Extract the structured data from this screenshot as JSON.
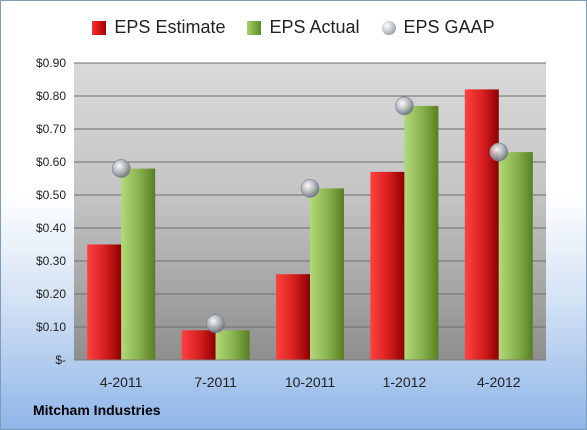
{
  "chart_data": {
    "type": "bar",
    "categories": [
      "4-2011",
      "7-2011",
      "10-2011",
      "1-2012",
      "4-2012"
    ],
    "series": [
      {
        "name": "EPS Estimate",
        "kind": "bar",
        "color": "#c41818",
        "values": [
          0.35,
          0.09,
          0.26,
          0.57,
          0.82
        ]
      },
      {
        "name": "EPS Actual",
        "kind": "bar",
        "color": "#8ab44a",
        "values": [
          0.58,
          0.09,
          0.52,
          0.77,
          0.63
        ]
      },
      {
        "name": "EPS GAAP",
        "kind": "marker",
        "color": "#a8acb4",
        "values": [
          0.58,
          0.11,
          0.52,
          0.77,
          0.63
        ]
      }
    ],
    "ylim": [
      0,
      0.9
    ],
    "yticks": [
      0,
      0.1,
      0.2,
      0.3,
      0.4,
      0.5,
      0.6,
      0.7,
      0.8,
      0.9
    ],
    "ytick_labels": [
      "$-",
      "$0.10",
      "$0.20",
      "$0.30",
      "$0.40",
      "$0.50",
      "$0.60",
      "$0.70",
      "$0.80",
      "$0.90"
    ],
    "grid": true,
    "legend_position": "top"
  },
  "footer": {
    "company": "Mitcham Industries"
  }
}
